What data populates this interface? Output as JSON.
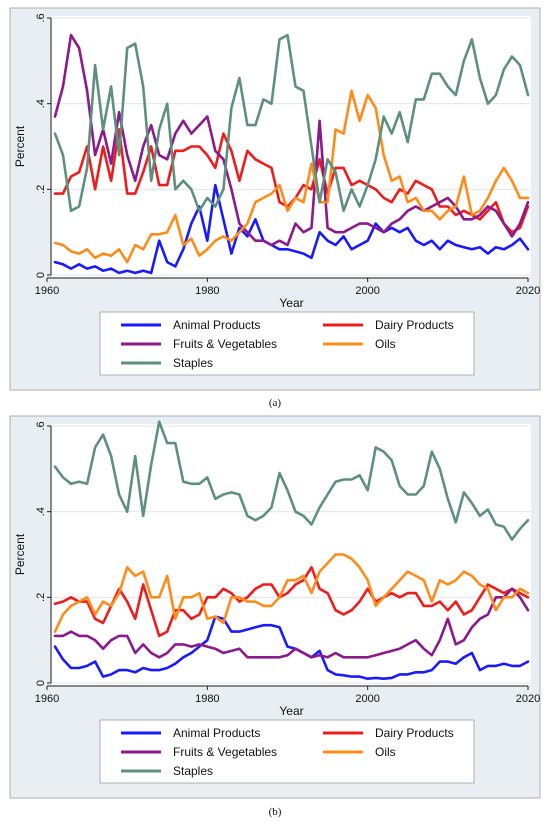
{
  "chart_data": [
    {
      "type": "line",
      "panel_label": "(a)",
      "xlabel": "Year",
      "ylabel": "Percent",
      "xlim": [
        1961,
        2020
      ],
      "ylim": [
        0,
        0.6
      ],
      "xticks": [
        "1960",
        "1980",
        "2000",
        "2020"
      ],
      "yticks": [
        "0",
        ".2",
        ".4",
        ".6"
      ],
      "grid": true,
      "legend_position": "bottom",
      "x": [
        1961,
        1962,
        1963,
        1964,
        1965,
        1966,
        1967,
        1968,
        1969,
        1970,
        1971,
        1972,
        1973,
        1974,
        1975,
        1976,
        1977,
        1978,
        1979,
        1980,
        1981,
        1982,
        1983,
        1984,
        1985,
        1986,
        1987,
        1988,
        1989,
        1990,
        1991,
        1992,
        1993,
        1994,
        1995,
        1996,
        1997,
        1998,
        1999,
        2000,
        2001,
        2002,
        2003,
        2004,
        2005,
        2006,
        2007,
        2008,
        2009,
        2010,
        2011,
        2012,
        2013,
        2014,
        2015,
        2016,
        2017,
        2018,
        2019,
        2020
      ],
      "series": [
        {
          "name": "Animal Products",
          "color": "#1a1aff",
          "values": [
            0.03,
            0.025,
            0.015,
            0.025,
            0.015,
            0.02,
            0.01,
            0.015,
            0.005,
            0.01,
            0.005,
            0.01,
            0.005,
            0.08,
            0.03,
            0.02,
            0.06,
            0.12,
            0.16,
            0.08,
            0.21,
            0.13,
            0.05,
            0.11,
            0.09,
            0.13,
            0.08,
            0.07,
            0.06,
            0.06,
            0.055,
            0.05,
            0.04,
            0.1,
            0.08,
            0.07,
            0.09,
            0.06,
            0.07,
            0.08,
            0.12,
            0.1,
            0.11,
            0.1,
            0.11,
            0.08,
            0.07,
            0.08,
            0.06,
            0.08,
            0.07,
            0.065,
            0.06,
            0.065,
            0.05,
            0.065,
            0.06,
            0.07,
            0.085,
            0.06
          ]
        },
        {
          "name": "Dairy Products",
          "color": "#ee1c1c",
          "values": [
            0.19,
            0.19,
            0.23,
            0.24,
            0.3,
            0.2,
            0.3,
            0.22,
            0.34,
            0.19,
            0.19,
            0.24,
            0.3,
            0.21,
            0.21,
            0.29,
            0.29,
            0.3,
            0.3,
            0.28,
            0.25,
            0.33,
            0.29,
            0.22,
            0.29,
            0.27,
            0.26,
            0.25,
            0.17,
            0.16,
            0.18,
            0.21,
            0.2,
            0.27,
            0.19,
            0.25,
            0.25,
            0.21,
            0.22,
            0.21,
            0.2,
            0.18,
            0.17,
            0.2,
            0.19,
            0.22,
            0.21,
            0.2,
            0.16,
            0.16,
            0.14,
            0.15,
            0.14,
            0.13,
            0.15,
            0.17,
            0.12,
            0.1,
            0.11,
            0.16
          ]
        },
        {
          "name": "Fruits & Vegetables",
          "color": "#8b1a8b",
          "values": [
            0.37,
            0.44,
            0.56,
            0.53,
            0.43,
            0.28,
            0.34,
            0.26,
            0.38,
            0.28,
            0.22,
            0.3,
            0.35,
            0.28,
            0.27,
            0.33,
            0.36,
            0.33,
            0.35,
            0.37,
            0.29,
            0.27,
            0.2,
            0.12,
            0.1,
            0.08,
            0.08,
            0.07,
            0.08,
            0.07,
            0.12,
            0.1,
            0.11,
            0.36,
            0.11,
            0.1,
            0.1,
            0.11,
            0.12,
            0.12,
            0.11,
            0.1,
            0.12,
            0.13,
            0.15,
            0.16,
            0.15,
            0.16,
            0.17,
            0.18,
            0.16,
            0.13,
            0.13,
            0.14,
            0.16,
            0.15,
            0.12,
            0.09,
            0.12,
            0.17
          ]
        },
        {
          "name": "Oils",
          "color": "#ff8c1a",
          "values": [
            0.075,
            0.07,
            0.055,
            0.05,
            0.06,
            0.04,
            0.05,
            0.045,
            0.06,
            0.03,
            0.07,
            0.06,
            0.095,
            0.095,
            0.1,
            0.14,
            0.07,
            0.085,
            0.045,
            0.06,
            0.08,
            0.09,
            0.08,
            0.1,
            0.12,
            0.17,
            0.18,
            0.19,
            0.21,
            0.15,
            0.18,
            0.17,
            0.26,
            0.17,
            0.17,
            0.34,
            0.33,
            0.43,
            0.36,
            0.42,
            0.39,
            0.28,
            0.22,
            0.23,
            0.17,
            0.18,
            0.15,
            0.15,
            0.13,
            0.15,
            0.16,
            0.23,
            0.14,
            0.15,
            0.18,
            0.22,
            0.25,
            0.22,
            0.18,
            0.18
          ]
        },
        {
          "name": "Staples",
          "color": "#5f8f7f",
          "values": [
            0.33,
            0.28,
            0.15,
            0.16,
            0.25,
            0.49,
            0.34,
            0.44,
            0.28,
            0.53,
            0.54,
            0.44,
            0.22,
            0.34,
            0.4,
            0.2,
            0.22,
            0.2,
            0.15,
            0.18,
            0.16,
            0.2,
            0.39,
            0.46,
            0.35,
            0.35,
            0.41,
            0.4,
            0.55,
            0.56,
            0.44,
            0.43,
            0.3,
            0.17,
            0.27,
            0.24,
            0.15,
            0.2,
            0.16,
            0.21,
            0.27,
            0.37,
            0.33,
            0.38,
            0.31,
            0.41,
            0.41,
            0.47,
            0.47,
            0.44,
            0.42,
            0.5,
            0.55,
            0.46,
            0.4,
            0.42,
            0.48,
            0.51,
            0.49,
            0.42
          ]
        }
      ]
    },
    {
      "type": "line",
      "panel_label": "(b)",
      "xlabel": "Year",
      "ylabel": "Percent",
      "xlim": [
        1961,
        2020
      ],
      "ylim": [
        0,
        0.6
      ],
      "xticks": [
        "1960",
        "1980",
        "2000",
        "2020"
      ],
      "yticks": [
        "0",
        ".2",
        ".4",
        ".6"
      ],
      "grid": true,
      "legend_position": "bottom",
      "x": [
        1961,
        1962,
        1963,
        1964,
        1965,
        1966,
        1967,
        1968,
        1969,
        1970,
        1971,
        1972,
        1973,
        1974,
        1975,
        1976,
        1977,
        1978,
        1979,
        1980,
        1981,
        1982,
        1983,
        1984,
        1985,
        1986,
        1987,
        1988,
        1989,
        1990,
        1991,
        1992,
        1993,
        1994,
        1995,
        1996,
        1997,
        1998,
        1999,
        2000,
        2001,
        2002,
        2003,
        2004,
        2005,
        2006,
        2007,
        2008,
        2009,
        2010,
        2011,
        2012,
        2013,
        2014,
        2015,
        2016,
        2017,
        2018,
        2019,
        2020
      ],
      "series": [
        {
          "name": "Animal Products",
          "color": "#1a1aff",
          "values": [
            0.085,
            0.055,
            0.035,
            0.035,
            0.04,
            0.05,
            0.015,
            0.02,
            0.03,
            0.03,
            0.025,
            0.035,
            0.03,
            0.03,
            0.035,
            0.045,
            0.06,
            0.07,
            0.085,
            0.1,
            0.155,
            0.15,
            0.12,
            0.12,
            0.125,
            0.13,
            0.135,
            0.135,
            0.13,
            0.085,
            0.08,
            0.07,
            0.06,
            0.075,
            0.03,
            0.02,
            0.018,
            0.015,
            0.015,
            0.01,
            0.012,
            0.01,
            0.012,
            0.02,
            0.02,
            0.025,
            0.025,
            0.03,
            0.05,
            0.05,
            0.045,
            0.06,
            0.07,
            0.03,
            0.04,
            0.04,
            0.045,
            0.04,
            0.04,
            0.05
          ]
        },
        {
          "name": "Dairy Products",
          "color": "#ee1c1c",
          "values": [
            0.185,
            0.19,
            0.2,
            0.19,
            0.19,
            0.15,
            0.14,
            0.18,
            0.22,
            0.19,
            0.15,
            0.23,
            0.17,
            0.11,
            0.12,
            0.17,
            0.17,
            0.15,
            0.16,
            0.2,
            0.2,
            0.22,
            0.21,
            0.19,
            0.2,
            0.22,
            0.23,
            0.23,
            0.2,
            0.21,
            0.23,
            0.24,
            0.27,
            0.22,
            0.21,
            0.17,
            0.16,
            0.17,
            0.19,
            0.22,
            0.19,
            0.2,
            0.21,
            0.2,
            0.21,
            0.21,
            0.18,
            0.18,
            0.19,
            0.17,
            0.19,
            0.16,
            0.17,
            0.2,
            0.23,
            0.22,
            0.21,
            0.22,
            0.21,
            0.2
          ]
        },
        {
          "name": "Fruits & Vegetables",
          "color": "#8b1a8b",
          "values": [
            0.11,
            0.11,
            0.12,
            0.11,
            0.11,
            0.1,
            0.08,
            0.1,
            0.11,
            0.11,
            0.07,
            0.09,
            0.07,
            0.06,
            0.07,
            0.09,
            0.09,
            0.085,
            0.09,
            0.085,
            0.08,
            0.07,
            0.075,
            0.08,
            0.06,
            0.06,
            0.06,
            0.06,
            0.06,
            0.065,
            0.08,
            0.07,
            0.06,
            0.065,
            0.06,
            0.07,
            0.06,
            0.06,
            0.06,
            0.06,
            0.065,
            0.07,
            0.075,
            0.08,
            0.09,
            0.1,
            0.08,
            0.065,
            0.1,
            0.15,
            0.09,
            0.1,
            0.13,
            0.15,
            0.16,
            0.2,
            0.2,
            0.22,
            0.2,
            0.17
          ]
        },
        {
          "name": "Oils",
          "color": "#ff8c1a",
          "values": [
            0.12,
            0.16,
            0.18,
            0.19,
            0.2,
            0.16,
            0.19,
            0.18,
            0.21,
            0.27,
            0.25,
            0.26,
            0.2,
            0.2,
            0.25,
            0.15,
            0.2,
            0.2,
            0.21,
            0.15,
            0.155,
            0.14,
            0.2,
            0.2,
            0.19,
            0.19,
            0.18,
            0.18,
            0.2,
            0.24,
            0.24,
            0.25,
            0.21,
            0.26,
            0.28,
            0.3,
            0.3,
            0.29,
            0.27,
            0.24,
            0.18,
            0.2,
            0.22,
            0.24,
            0.26,
            0.25,
            0.24,
            0.19,
            0.24,
            0.23,
            0.24,
            0.26,
            0.25,
            0.23,
            0.22,
            0.17,
            0.2,
            0.2,
            0.22,
            0.21
          ]
        },
        {
          "name": "Staples",
          "color": "#5f8f7f",
          "values": [
            0.505,
            0.48,
            0.465,
            0.47,
            0.465,
            0.55,
            0.58,
            0.53,
            0.44,
            0.4,
            0.53,
            0.39,
            0.51,
            0.61,
            0.56,
            0.56,
            0.47,
            0.465,
            0.465,
            0.48,
            0.43,
            0.44,
            0.445,
            0.44,
            0.39,
            0.38,
            0.39,
            0.41,
            0.49,
            0.45,
            0.4,
            0.39,
            0.37,
            0.41,
            0.44,
            0.47,
            0.475,
            0.475,
            0.485,
            0.45,
            0.55,
            0.54,
            0.52,
            0.46,
            0.44,
            0.44,
            0.46,
            0.54,
            0.5,
            0.43,
            0.375,
            0.445,
            0.42,
            0.39,
            0.405,
            0.37,
            0.365,
            0.335,
            0.36,
            0.38
          ]
        }
      ]
    }
  ]
}
